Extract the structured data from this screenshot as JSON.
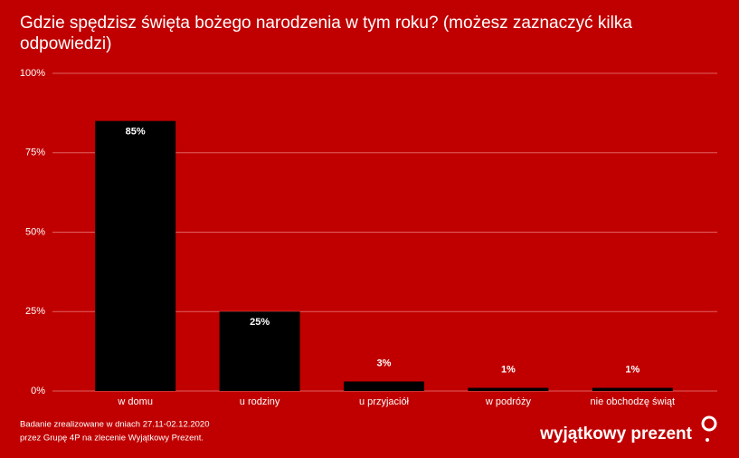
{
  "chart_data": {
    "type": "bar",
    "title": "Gdzie spędzisz święta bożego narodzenia w tym roku? (możesz zaznaczyć kilka odpowiedzi)",
    "categories": [
      "w domu",
      "u rodziny",
      "u przyjaciół",
      "w podróży",
      "nie obchodzę świąt"
    ],
    "values": [
      85,
      25,
      3,
      1,
      1
    ],
    "value_labels": [
      "85%",
      "25%",
      "3%",
      "1%",
      "1%"
    ],
    "color": "#000000",
    "ylim": [
      0,
      100
    ],
    "yticks": [
      {
        "value": 0,
        "label": "0%"
      },
      {
        "value": 25,
        "label": "25%"
      },
      {
        "value": 50,
        "label": "50%"
      },
      {
        "value": 75,
        "label": "75%"
      },
      {
        "value": 100,
        "label": "100%"
      }
    ],
    "grid": true
  },
  "footer": {
    "notes": [
      "Badanie zrealizowane w dniach 27.11-02.12.2020",
      "przez Grupę 4P na zlecenie Wyjątkowy Prezent."
    ],
    "logo": "wyjątkowy prezent"
  }
}
